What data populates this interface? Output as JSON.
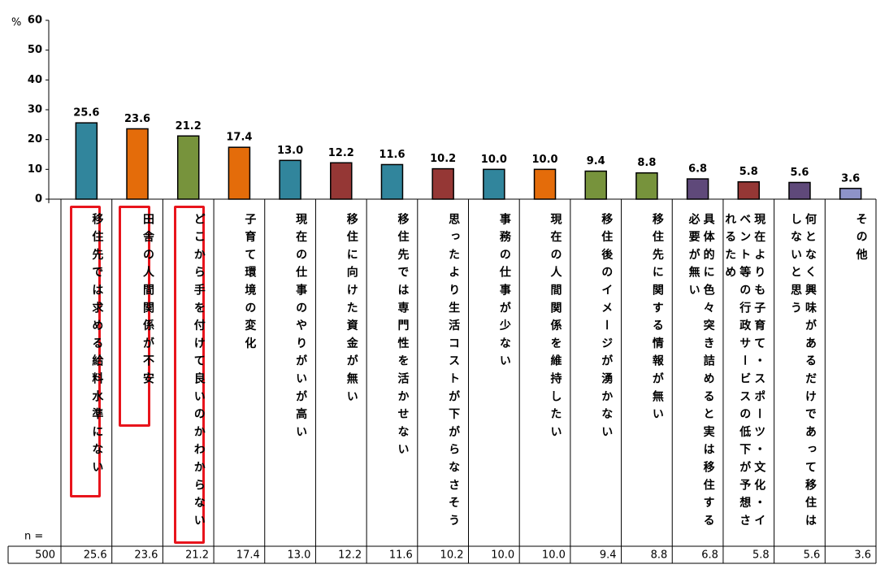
{
  "chart_data": {
    "type": "bar",
    "y_label": "%",
    "ylim": [
      0,
      60
    ],
    "yticks": [
      0,
      10,
      20,
      30,
      40,
      50,
      60
    ],
    "categories": [
      "移住先では求める給料水準にない",
      "田舎の人間関係が不安",
      "どこから手を付けて良いのかわからない",
      "子育て環境の変化",
      "現在の仕事のやりがいが高い",
      "移住に向けた資金が無い",
      "移住先では専門性を活かせない",
      "思ったより生活コストが下がらなさそう",
      "事務の仕事が少ない",
      "現在の人間関係を維持したい",
      "移住後のイメージが湧かない",
      "移住先に関する情報が無い",
      "具体的に色々突き詰めると実は移住する必要が無い",
      "現在よりも子育て・スポーツ・文化・イベント等の行政サービスの低下が予想されるため",
      "何となく興味があるだけであって移住はしないと思う",
      "その他"
    ],
    "values": [
      25.6,
      23.6,
      21.2,
      17.4,
      13.0,
      12.2,
      11.6,
      10.2,
      10.0,
      10.0,
      9.4,
      8.8,
      6.8,
      5.8,
      5.6,
      3.6
    ],
    "value_labels": [
      "25.6",
      "23.6",
      "21.2",
      "17.4",
      "13.0",
      "12.2",
      "11.6",
      "10.2",
      "10.0",
      "10.0",
      "9.4",
      "8.8",
      "6.8",
      "5.8",
      "5.6",
      "3.6"
    ],
    "colors": [
      "#31859c",
      "#e46c0a",
      "#77933c",
      "#e46c0a",
      "#31859c",
      "#953735",
      "#31859c",
      "#953735",
      "#31859c",
      "#e46c0a",
      "#77933c",
      "#77933c",
      "#5f497a",
      "#953735",
      "#5f497a",
      "#8e93c8"
    ],
    "n_label": "n =",
    "n_value": 500
  }
}
